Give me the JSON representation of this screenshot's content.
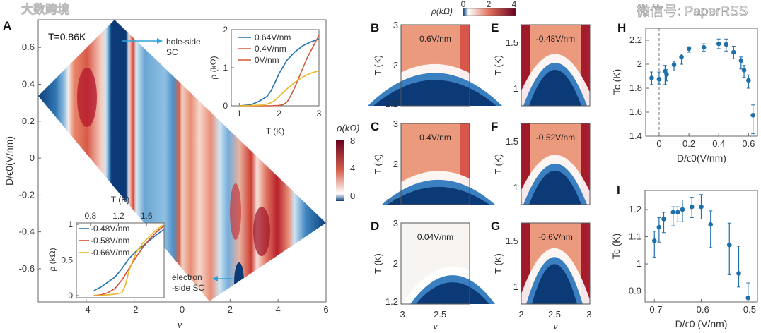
{
  "watermarks": {
    "left": "大数跨境",
    "right": "微信号: PaperRSS"
  },
  "chart_data": [
    {
      "panel": "A",
      "type": "heatmap",
      "annotation_temp": "T=0.86K",
      "xlabel": "ν",
      "ylabel": "D/ϵ0(V/nm)",
      "xlim": [
        -6,
        6
      ],
      "ylim": [
        -0.78,
        0.75
      ],
      "xticks": [
        "-4",
        "-2",
        "0",
        "2",
        "4",
        "6"
      ],
      "xtick_values": [
        -4,
        -2,
        0,
        2,
        4,
        6
      ],
      "yticks": [
        "0.6",
        "0.4",
        "0.2",
        "0",
        "-0.2",
        "-0.4",
        "-0.6"
      ],
      "ytick_values": [
        0.6,
        0.4,
        0.2,
        0,
        -0.2,
        -0.4,
        -0.6
      ],
      "annotations": {
        "hole": [
          "hole-side",
          "SC"
        ],
        "electron": [
          "electron",
          "-side SC"
        ]
      },
      "colorbar": {
        "label": "ρ(kΩ)",
        "ticks": [
          "8",
          "4",
          "0"
        ],
        "range": [
          0,
          8
        ]
      }
    },
    {
      "panel": "A-inset-top",
      "type": "line",
      "xlabel": "T (K)",
      "ylabel": "ρ (kΩ)",
      "xlim": [
        0.8,
        3
      ],
      "ylim": [
        0,
        2
      ],
      "xticks": [
        "1",
        "2",
        "3"
      ],
      "xtick_values": [
        1,
        2,
        3
      ],
      "yticks": [
        "0",
        "1",
        "2"
      ],
      "ytick_values": [
        0,
        1,
        2
      ],
      "series": [
        {
          "name": "0.64V/nm",
          "color": "#1f6fa8",
          "x": [
            1,
            1.3,
            1.5,
            1.7,
            1.8,
            1.9,
            2,
            2.2,
            2.4,
            2.6,
            2.8,
            3
          ],
          "y": [
            0,
            0.03,
            0.12,
            0.25,
            0.4,
            0.62,
            0.85,
            1.2,
            1.42,
            1.58,
            1.68,
            1.75
          ]
        },
        {
          "name": "0.4V/nm",
          "color": "#d25a3a",
          "x": [
            1,
            1.8,
            2.0,
            2.1,
            2.2,
            2.3,
            2.4,
            2.5,
            2.6,
            2.7,
            2.8,
            2.9,
            3
          ],
          "y": [
            0,
            0,
            0.01,
            0.03,
            0.1,
            0.28,
            0.5,
            0.75,
            1.0,
            1.25,
            1.45,
            1.65,
            1.85
          ]
        },
        {
          "name": "0V/nm",
          "color": "#e8b62a",
          "legend_color": "#d25a3a",
          "x": [
            1,
            1.6,
            1.8,
            1.9,
            2.0,
            2.2,
            2.4,
            2.6,
            2.8,
            3
          ],
          "y": [
            0,
            0.02,
            0.08,
            0.15,
            0.25,
            0.45,
            0.62,
            0.76,
            0.86,
            0.92
          ]
        }
      ]
    },
    {
      "panel": "A-inset-bottom",
      "type": "line",
      "xlabel": "T (K)",
      "ylabel": "ρ (kΩ)",
      "xlim": [
        0.6,
        1.85
      ],
      "ylim": [
        -0.03,
        1.02
      ],
      "xticks": [
        "0.8",
        "1.2",
        "1.6"
      ],
      "xtick_values": [
        0.8,
        1.2,
        1.6
      ],
      "yticks": [
        "0",
        "0.5",
        "1"
      ],
      "ytick_values": [
        0,
        0.5,
        1
      ],
      "series": [
        {
          "name": "-0.48V/nm",
          "color": "#1f6fa8",
          "x": [
            0.85,
            0.95,
            1.05,
            1.15,
            1.25,
            1.35,
            1.45,
            1.55,
            1.65,
            1.75,
            1.85
          ],
          "y": [
            0.07,
            0.12,
            0.19,
            0.26,
            0.38,
            0.52,
            0.62,
            0.7,
            0.78,
            0.86,
            0.93
          ]
        },
        {
          "name": "-0.58V/nm",
          "color": "#d9482b",
          "x": [
            0.85,
            0.95,
            1.05,
            1.15,
            1.25,
            1.35,
            1.45,
            1.55,
            1.65,
            1.75,
            1.85
          ],
          "y": [
            0,
            0.01,
            0.04,
            0.1,
            0.22,
            0.38,
            0.54,
            0.68,
            0.8,
            0.9,
            0.98
          ]
        },
        {
          "name": "-0.66V/nm",
          "color": "#e8b62a",
          "x": [
            0.85,
            0.95,
            1.05,
            1.15,
            1.25,
            1.3,
            1.35,
            1.45,
            1.55,
            1.65,
            1.75,
            1.85
          ],
          "y": [
            0,
            0,
            0.01,
            0.02,
            0.04,
            0.15,
            0.35,
            0.6,
            0.74,
            0.84,
            0.93,
            1.0
          ]
        }
      ]
    },
    {
      "panel": "B-G",
      "type": "heatmap",
      "colorbar": {
        "label": "ρ(kΩ)",
        "ticks": [
          "0",
          "2",
          "4"
        ],
        "range": [
          0,
          4
        ]
      },
      "panels": [
        {
          "label": "B",
          "text": "0.6V/nm",
          "ylabel": "T (K)",
          "yticks": [
            "3",
            "2",
            "1.2"
          ],
          "xticks": []
        },
        {
          "label": "C",
          "text": "0.4V/nm",
          "ylabel": "T (K)",
          "yticks": [
            "3",
            "2",
            "1.2"
          ],
          "xticks": []
        },
        {
          "label": "D",
          "text": "0.04V/nm",
          "ylabel": "T (K)",
          "yticks": [
            "3",
            "2",
            "1.2"
          ],
          "xticks": [
            "-3",
            "-2.5"
          ],
          "xlabel": "ν"
        },
        {
          "label": "E",
          "text": "-0.48V/nm",
          "ylabel": "T (K)",
          "yticks": [
            "1.5",
            "1"
          ],
          "xticks": []
        },
        {
          "label": "F",
          "text": "-0.52V/nm",
          "ylabel": "T (K)",
          "yticks": [
            "1.5",
            "1"
          ],
          "xticks": []
        },
        {
          "label": "G",
          "text": "-0.6V/nm",
          "ylabel": "T (K)",
          "yticks": [
            "1.5",
            "1"
          ],
          "xticks": [
            "2",
            "2.5",
            "3"
          ],
          "xlabel": "ν"
        }
      ]
    },
    {
      "panel": "H",
      "type": "scatter",
      "xlabel": "D/ϵ0(V/nm)",
      "ylabel": "Tc (K)",
      "xlim": [
        -0.09,
        0.66
      ],
      "ylim": [
        1.4,
        2.3
      ],
      "xticks": [
        "0",
        "0.2",
        "0.4",
        "0.6"
      ],
      "xtick_values": [
        0,
        0.2,
        0.4,
        0.6
      ],
      "yticks": [
        "2.2",
        "2",
        "1.8",
        "1.6",
        "1.4"
      ],
      "ytick_values": [
        2.2,
        2.0,
        1.8,
        1.6,
        1.4
      ],
      "color": "#1f6fa8",
      "x": [
        -0.05,
        0,
        0.04,
        0.05,
        0.1,
        0.15,
        0.2,
        0.3,
        0.4,
        0.45,
        0.5,
        0.55,
        0.57,
        0.6,
        0.63
      ],
      "y": [
        1.885,
        1.875,
        1.94,
        1.915,
        1.995,
        2.06,
        2.13,
        2.14,
        2.17,
        2.165,
        2.1,
        2.03,
        1.95,
        1.865,
        1.575
      ],
      "err_low": [
        1.83,
        1.835,
        1.83,
        1.86,
        1.945,
        2.0,
        2.1,
        2.11,
        2.13,
        2.11,
        2.045,
        1.96,
        1.89,
        1.8,
        1.42
      ],
      "err_high": [
        1.935,
        1.935,
        1.99,
        1.955,
        2.025,
        2.085,
        2.145,
        2.17,
        2.21,
        2.21,
        2.15,
        2.06,
        1.99,
        1.91,
        1.66
      ]
    },
    {
      "panel": "I",
      "type": "scatter",
      "xlabel": "D/ϵ0 (V/nm)",
      "ylabel": "Tc (K)",
      "xlim": [
        -0.72,
        -0.48
      ],
      "ylim": [
        0.86,
        1.27
      ],
      "xticks": [
        "-0.7",
        "-0.6",
        "-0.5"
      ],
      "xtick_values": [
        -0.7,
        -0.6,
        -0.5
      ],
      "yticks": [
        "1.2",
        "1.1",
        "1",
        "0.9"
      ],
      "ytick_values": [
        1.2,
        1.1,
        1.0,
        0.9
      ],
      "color": "#1f6fa8",
      "x": [
        -0.7,
        -0.69,
        -0.68,
        -0.66,
        -0.65,
        -0.64,
        -0.62,
        -0.6,
        -0.58,
        -0.54,
        -0.52,
        -0.5
      ],
      "y": [
        1.085,
        1.135,
        1.165,
        1.19,
        1.19,
        1.2,
        1.21,
        1.21,
        1.145,
        1.07,
        0.965,
        0.875
      ],
      "err_low": [
        1.025,
        1.08,
        1.115,
        1.14,
        1.155,
        1.155,
        1.17,
        1.165,
        1.06,
        0.96,
        0.915,
        0.87
      ],
      "err_high": [
        1.12,
        1.17,
        1.19,
        1.21,
        1.21,
        1.235,
        1.245,
        1.255,
        1.195,
        1.15,
        1.065,
        0.93
      ]
    }
  ]
}
